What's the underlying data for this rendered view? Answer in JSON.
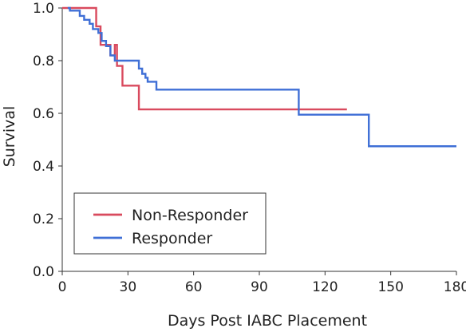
{
  "chart_data": {
    "type": "line",
    "subtype": "kaplan-meier-step",
    "xlabel": "Days Post IABC Placement",
    "ylabel": "Survival",
    "xlim": [
      0,
      180
    ],
    "ylim": [
      0,
      1.0
    ],
    "xticks": [
      0,
      30,
      60,
      90,
      120,
      150,
      180
    ],
    "yticks": [
      0.0,
      0.2,
      0.4,
      0.6,
      0.8,
      1.0
    ],
    "xtick_labels": [
      "0",
      "30",
      "60",
      "90",
      "120",
      "150",
      "180"
    ],
    "ytick_labels": [
      "0.0",
      "0.2",
      "0.4",
      "0.6",
      "0.8",
      "1.0"
    ],
    "grid": false,
    "legend_position": "bottom-left",
    "series": [
      {
        "name": "Non-Responder",
        "color": "#d94a5e",
        "points": [
          [
            0,
            1.0
          ],
          [
            15.5,
            1.0
          ],
          [
            15.5,
            0.93
          ],
          [
            17.5,
            0.93
          ],
          [
            17.5,
            0.86
          ],
          [
            22,
            0.86
          ],
          [
            22,
            0.82
          ],
          [
            24,
            0.82
          ],
          [
            24,
            0.86
          ],
          [
            25,
            0.86
          ],
          [
            25,
            0.78
          ],
          [
            27.5,
            0.78
          ],
          [
            27.5,
            0.705
          ],
          [
            35,
            0.705
          ],
          [
            35,
            0.615
          ],
          [
            130,
            0.615
          ]
        ]
      },
      {
        "name": "Responder",
        "color": "#3f6fd6",
        "points": [
          [
            2.5,
            1.0
          ],
          [
            3.5,
            1.0
          ],
          [
            3.5,
            0.99
          ],
          [
            8,
            0.99
          ],
          [
            8,
            0.97
          ],
          [
            10,
            0.97
          ],
          [
            10,
            0.955
          ],
          [
            12.5,
            0.955
          ],
          [
            12.5,
            0.94
          ],
          [
            14,
            0.94
          ],
          [
            14,
            0.92
          ],
          [
            16.5,
            0.92
          ],
          [
            16.5,
            0.905
          ],
          [
            18,
            0.905
          ],
          [
            18,
            0.875
          ],
          [
            20,
            0.875
          ],
          [
            20,
            0.855
          ],
          [
            22,
            0.855
          ],
          [
            22,
            0.82
          ],
          [
            24,
            0.82
          ],
          [
            24,
            0.8
          ],
          [
            35,
            0.8
          ],
          [
            35,
            0.77
          ],
          [
            36.5,
            0.77
          ],
          [
            36.5,
            0.75
          ],
          [
            38,
            0.75
          ],
          [
            38,
            0.735
          ],
          [
            39,
            0.735
          ],
          [
            39,
            0.72
          ],
          [
            43,
            0.72
          ],
          [
            43,
            0.69
          ],
          [
            108,
            0.69
          ],
          [
            108,
            0.595
          ],
          [
            140,
            0.595
          ],
          [
            140,
            0.475
          ],
          [
            180,
            0.475
          ]
        ]
      }
    ]
  }
}
